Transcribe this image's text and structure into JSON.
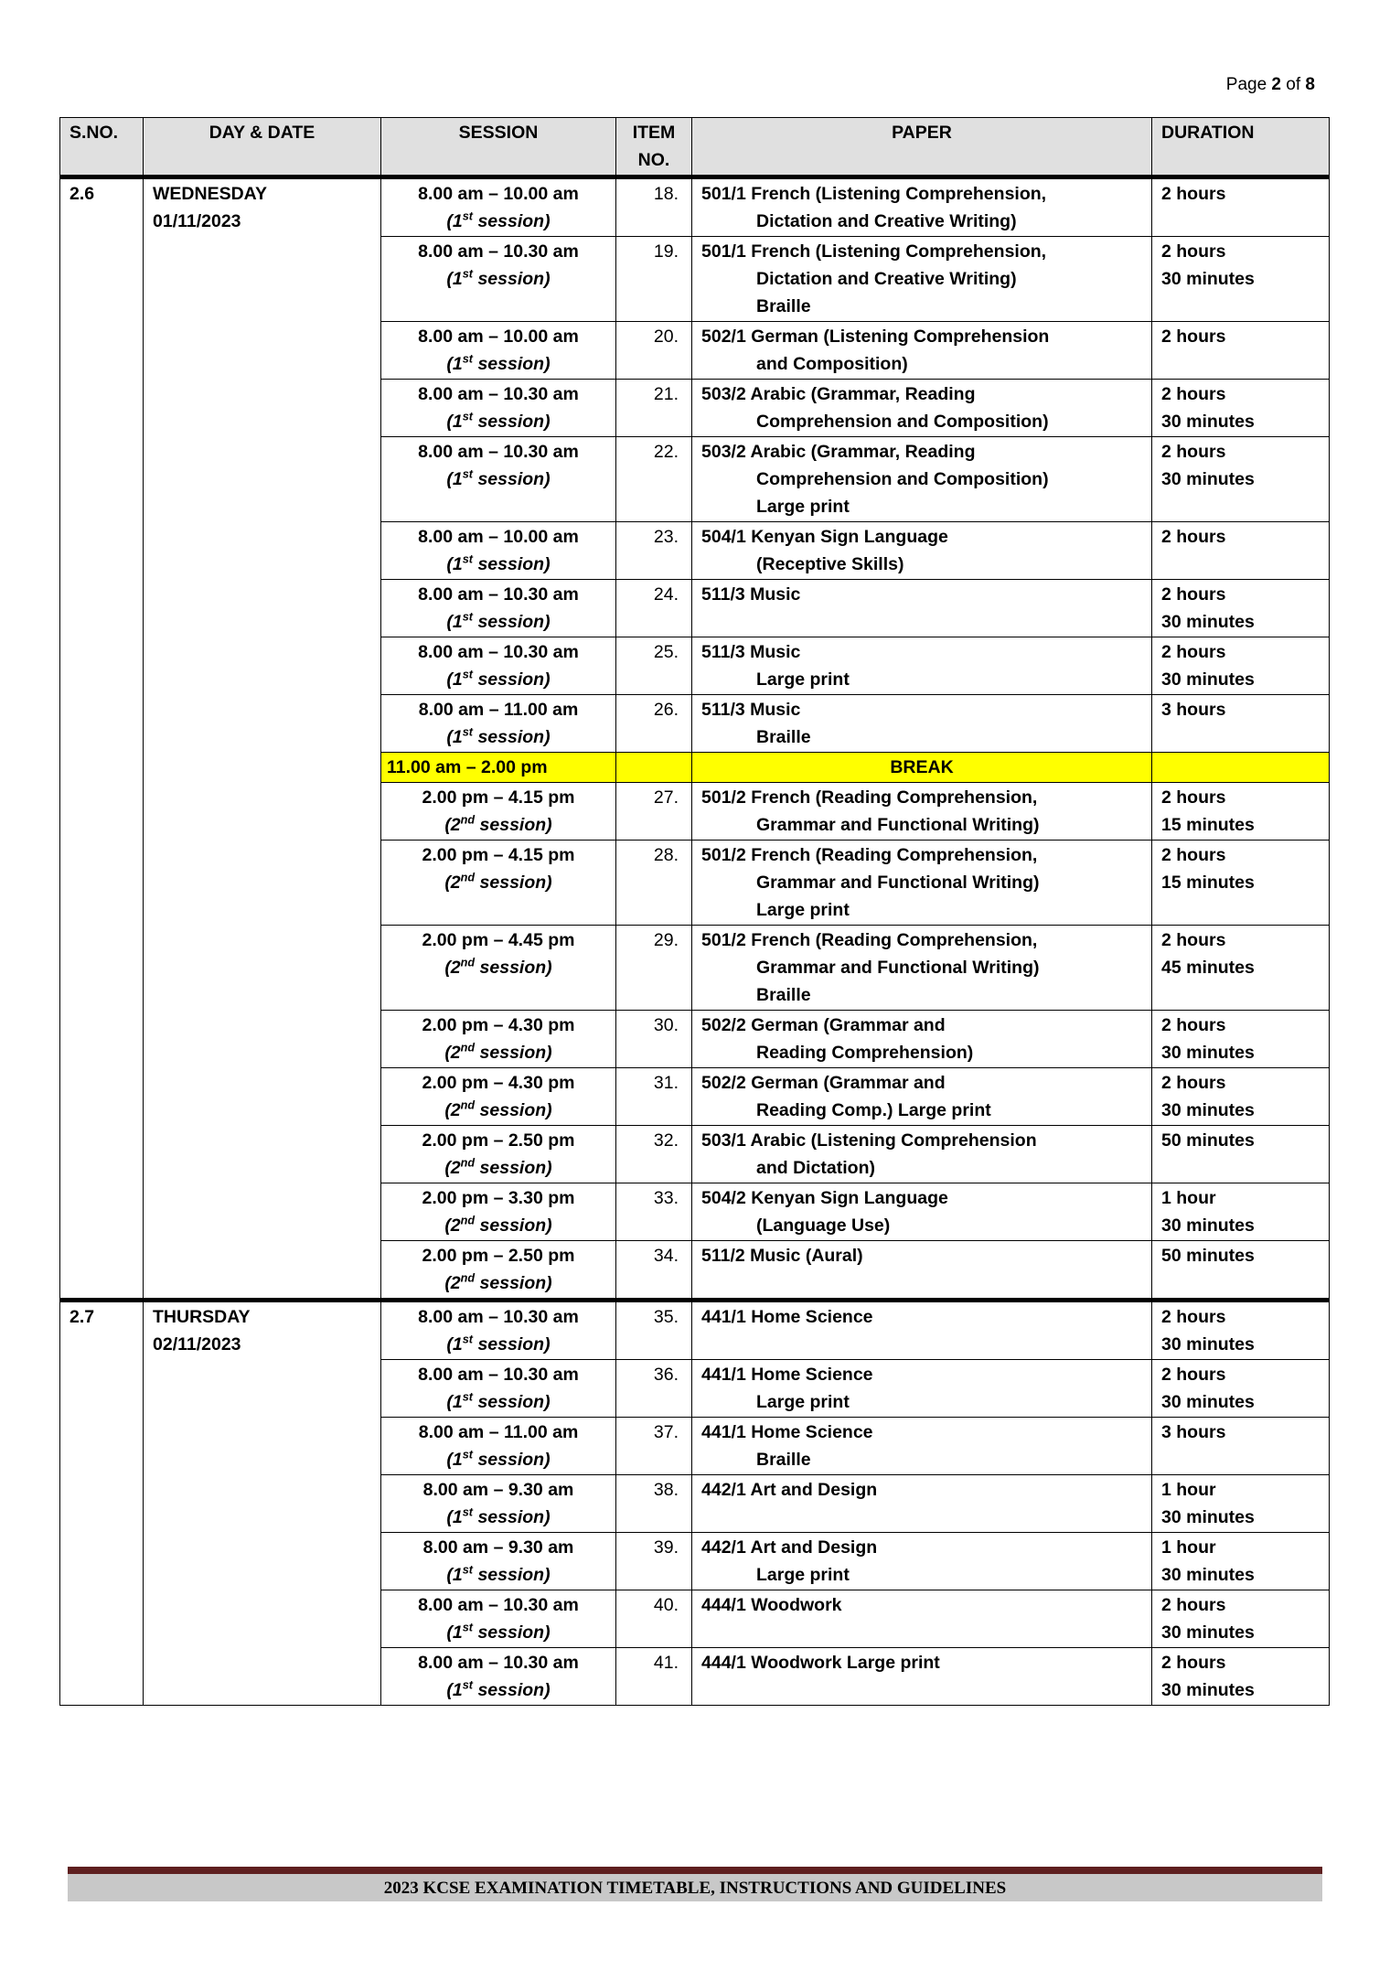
{
  "page": {
    "prefix": "Page",
    "current": "2",
    "of": "of",
    "total": "8"
  },
  "headers": {
    "sno": "S.NO.",
    "day": "DAY & DATE",
    "session": "SESSION",
    "item": "ITEM NO.",
    "paper": "PAPER",
    "duration": "DURATION"
  },
  "days": [
    {
      "sno": "2.6",
      "day": "WEDNESDAY",
      "date": "01/11/2023",
      "rows": [
        {
          "time": "8.00 am – 10.00 am",
          "ord": "1",
          "suf": "st",
          "item": "18.",
          "paper": [
            "501/1 French (Listening Comprehension,",
            "Dictation and Creative Writing)"
          ],
          "duration": [
            "2 hours"
          ]
        },
        {
          "time": "8.00 am – 10.30 am",
          "ord": "1",
          "suf": "st",
          "item": "19.",
          "paper": [
            "501/1 French (Listening Comprehension,",
            "Dictation and Creative Writing)",
            "Braille"
          ],
          "duration": [
            "2 hours",
            "30 minutes"
          ]
        },
        {
          "time": "8.00 am – 10.00 am",
          "ord": "1",
          "suf": "st",
          "item": "20.",
          "paper": [
            "502/1 German (Listening Comprehension",
            "and Composition)"
          ],
          "duration": [
            "2 hours"
          ]
        },
        {
          "time": "8.00 am – 10.30 am",
          "ord": "1",
          "suf": "st",
          "item": "21.",
          "paper": [
            "503/2 Arabic (Grammar, Reading",
            "Comprehension and Composition)"
          ],
          "duration": [
            "2 hours",
            "30 minutes"
          ]
        },
        {
          "time": "8.00 am – 10.30 am",
          "ord": "1",
          "suf": "st",
          "item": "22.",
          "paper": [
            "503/2 Arabic (Grammar, Reading",
            "Comprehension and Composition)",
            "Large print"
          ],
          "duration": [
            "2 hours",
            "30 minutes"
          ]
        },
        {
          "time": "8.00 am – 10.00 am",
          "ord": "1",
          "suf": "st",
          "item": "23.",
          "paper": [
            "504/1 Kenyan Sign Language",
            "(Receptive Skills)"
          ],
          "duration": [
            "2 hours"
          ]
        },
        {
          "time": "8.00 am – 10.30 am",
          "ord": "1",
          "suf": "st",
          "item": "24.",
          "paper": [
            "511/3 Music"
          ],
          "duration": [
            "2 hours",
            "30 minutes"
          ]
        },
        {
          "time": "8.00 am – 10.30 am",
          "ord": "1",
          "suf": "st",
          "item": "25.",
          "paper": [
            "511/3 Music",
            "Large print"
          ],
          "duration": [
            "2 hours",
            "30 minutes"
          ]
        },
        {
          "time": "8.00 am – 11.00 am",
          "ord": "1",
          "suf": "st",
          "item": "26.",
          "paper": [
            "511/3 Music",
            "Braille"
          ],
          "duration": [
            "3 hours"
          ]
        },
        {
          "break": true,
          "time": "11.00 am – 2.00 pm",
          "label": "BREAK"
        },
        {
          "time": "2.00 pm – 4.15 pm",
          "ord": "2",
          "suf": "nd",
          "item": "27.",
          "paper": [
            "501/2  French (Reading Comprehension,",
            "Grammar and Functional Writing)"
          ],
          "duration": [
            "2 hours",
            "15 minutes"
          ]
        },
        {
          "time": "2.00 pm – 4.15 pm",
          "ord": "2",
          "suf": "nd",
          "item": "28.",
          "paper": [
            "501/2  French (Reading Comprehension,",
            "Grammar and Functional Writing)",
            "Large print"
          ],
          "duration": [
            "2 hours",
            "15 minutes"
          ]
        },
        {
          "time": "2.00 pm – 4.45 pm",
          "ord": "2",
          "suf": "nd",
          "item": "29.",
          "paper": [
            "501/2  French (Reading Comprehension,",
            "Grammar and Functional Writing)",
            "Braille"
          ],
          "duration": [
            "2 hours",
            "45 minutes"
          ]
        },
        {
          "time": "2.00 pm – 4.30 pm",
          "ord": "2",
          "suf": "nd",
          "item": "30.",
          "paper": [
            "502/2  German (Grammar and",
            "Reading Comprehension)"
          ],
          "duration": [
            "2 hours",
            "30 minutes"
          ]
        },
        {
          "time": "2.00 pm – 4.30 pm",
          "ord": "2",
          "suf": "nd",
          "item": "31.",
          "paper": [
            "502/2  German (Grammar and",
            "Reading Comp.)   Large print"
          ],
          "duration": [
            "2 hours",
            "30 minutes"
          ]
        },
        {
          "time": "2.00 pm – 2.50 pm",
          "ord": "2",
          "suf": "nd",
          "item": "32.",
          "paper": [
            "503/1  Arabic (Listening Comprehension",
            "and Dictation)"
          ],
          "duration": [
            "50 minutes"
          ]
        },
        {
          "time": "2.00 pm – 3.30 pm",
          "ord": "2",
          "suf": "nd",
          "item": "33.",
          "paper": [
            "504/2  Kenyan Sign Language",
            "(Language Use)"
          ],
          "duration": [
            "1 hour",
            "30 minutes"
          ]
        },
        {
          "time": "2.00 pm – 2.50 pm",
          "ord": "2",
          "suf": "nd",
          "item": "34.",
          "paper": [
            "511/2  Music (Aural)"
          ],
          "duration": [
            "50 minutes"
          ]
        }
      ]
    },
    {
      "sno": "2.7",
      "day": "THURSDAY",
      "date": "02/11/2023",
      "rows": [
        {
          "time": "8.00 am – 10.30 am",
          "ord": "1",
          "suf": "st",
          "item": "35.",
          "paper": [
            "441/1  Home Science"
          ],
          "duration": [
            "2 hours",
            "30 minutes"
          ]
        },
        {
          "time": "8.00 am – 10.30 am",
          "ord": "1",
          "suf": "st",
          "item": "36.",
          "paper": [
            "441/1  Home Science",
            "Large print"
          ],
          "duration": [
            "2 hours",
            "30 minutes"
          ]
        },
        {
          "time": "8.00 am – 11.00 am",
          "ord": "1",
          "suf": "st",
          "item": "37.",
          "paper": [
            "441/1  Home Science",
            "Braille"
          ],
          "duration": [
            "3 hours"
          ]
        },
        {
          "time": "8.00 am – 9.30 am",
          "ord": "1",
          "suf": "st",
          "item": "38.",
          "paper": [
            "442/1  Art and Design"
          ],
          "duration": [
            "1 hour",
            "30 minutes"
          ]
        },
        {
          "time": "8.00 am – 9.30 am",
          "ord": "1",
          "suf": "st",
          "item": "39.",
          "paper": [
            "442/1  Art and Design",
            "Large print"
          ],
          "duration": [
            "1 hour",
            "30 minutes"
          ]
        },
        {
          "time": "8.00 am – 10.30 am",
          "ord": "1",
          "suf": "st",
          "item": "40.",
          "paper": [
            "444/1 Woodwork"
          ],
          "duration": [
            "2 hours",
            "30 minutes"
          ]
        },
        {
          "time": "8.00 am – 10.30 am",
          "ord": "1",
          "suf": "st",
          "item": "41.",
          "paper": [
            "444/1 Woodwork Large print"
          ],
          "duration": [
            "2 hours",
            "30 minutes"
          ]
        }
      ]
    }
  ],
  "session_word": "session",
  "footer": "2023 KCSE EXAMINATION TIMETABLE, INSTRUCTIONS AND GUIDELINES",
  "colors": {
    "break_highlight": "#ffff00",
    "header_bg": "#e0e0e0",
    "footer_bar": "#5e1f1f",
    "footer_band": "#c8c8c8"
  }
}
